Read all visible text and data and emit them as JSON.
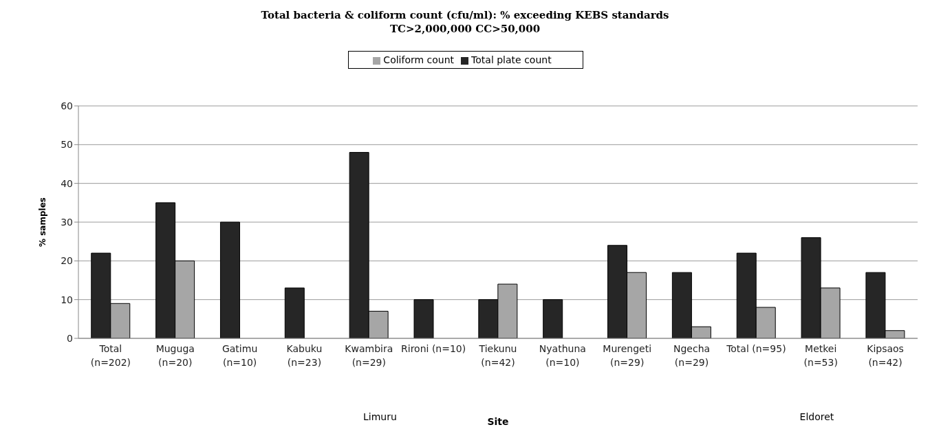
{
  "chart_data": {
    "type": "bar",
    "title": "Total bacteria & coliform count (cfu/ml): % exceeding KEBS standards\nTC>2,000,000  CC>50,000",
    "xlabel": "Site",
    "ylabel": "% samples",
    "categories": [
      "Total\n(n=202)",
      "Muguga\n(n=20)",
      "Gatimu\n(n=10)",
      "Kabuku\n(n=23)",
      "Kwambira\n(n=29)",
      "Rironi (n=10)",
      "Tiekunu\n(n=42)",
      "Nyathuna\n(n=10)",
      "Murengeti\n(n=29)",
      "Ngecha\n(n=29)",
      "Total (n=95)",
      "Metkei\n(n=53)",
      "Kipsaos\n(n=42)"
    ],
    "series": [
      {
        "name": "Total plate count",
        "color": "#262626",
        "values": [
          22,
          35,
          30,
          13,
          48,
          10,
          10,
          10,
          24,
          17,
          22,
          26,
          17
        ]
      },
      {
        "name": "Coliform count",
        "color": "#a6a6a6",
        "values": [
          9,
          20,
          0,
          0,
          7,
          0,
          14,
          0,
          17,
          3,
          8,
          13,
          2
        ]
      }
    ],
    "ylim": [
      0,
      60
    ],
    "yticks": [
      0,
      10,
      20,
      30,
      40,
      50,
      60
    ],
    "grid": "y",
    "legend": "top",
    "annotations": [
      "Limuru",
      "Eldoret"
    ]
  }
}
